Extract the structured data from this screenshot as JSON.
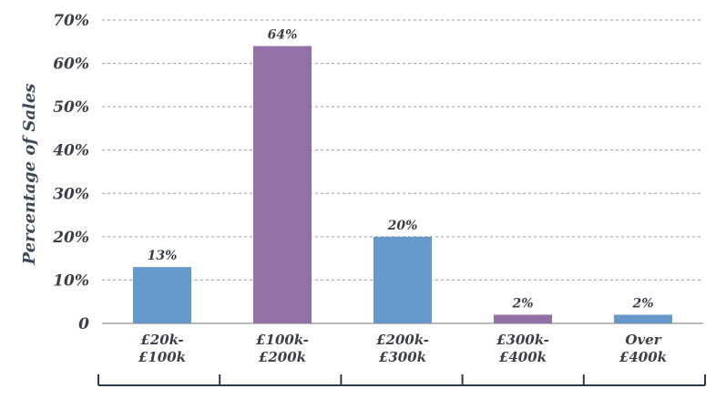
{
  "chart_data": {
    "type": "bar",
    "ylabel": "Percentage of Sales",
    "xlabel": "",
    "ylim": [
      0,
      70
    ],
    "yticks": [
      {
        "value": 0,
        "label": "0"
      },
      {
        "value": 10,
        "label": "10%"
      },
      {
        "value": 20,
        "label": "20%"
      },
      {
        "value": 30,
        "label": "30%"
      },
      {
        "value": 40,
        "label": "40%"
      },
      {
        "value": 50,
        "label": "50%"
      },
      {
        "value": 60,
        "label": "60%"
      },
      {
        "value": 70,
        "label": "70%"
      }
    ],
    "grid": true,
    "categories": [
      [
        "£20k-",
        "£100k"
      ],
      [
        "£100k-",
        "£200k"
      ],
      [
        "£200k-",
        "£300k"
      ],
      [
        "£300k-",
        "£400k"
      ],
      [
        "Over",
        "£400k"
      ]
    ],
    "values": [
      13,
      64,
      20,
      2,
      2
    ],
    "data_labels": [
      "13%",
      "64%",
      "20%",
      "2%",
      "2%"
    ],
    "colors": [
      "#6699c9",
      "#9370a8",
      "#6699c9",
      "#9370a8",
      "#6699c9"
    ]
  }
}
